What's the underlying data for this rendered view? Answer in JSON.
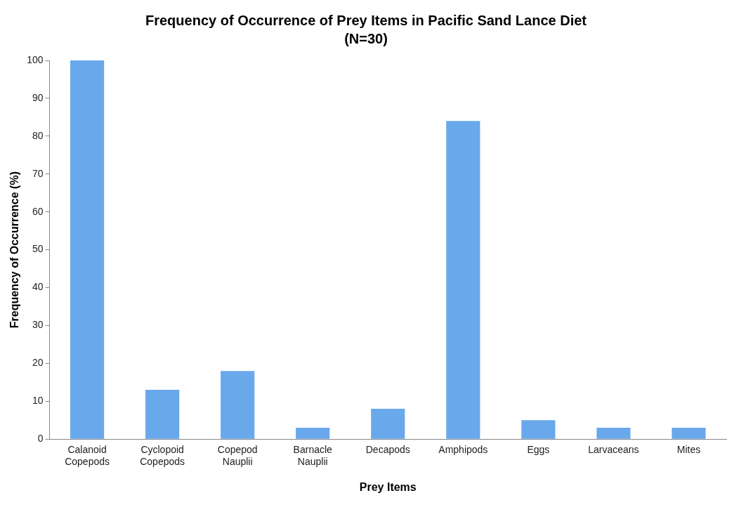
{
  "chart_data": {
    "type": "bar",
    "title": "Frequency of Occurrence of Prey Items in Pacific Sand Lance Diet",
    "subtitle": "(N=30)",
    "xlabel": "Prey Items",
    "ylabel": "Frequency of Occurrence (%)",
    "categories": [
      "Calanoid Copepods",
      "Cyclopoid Copepods",
      "Copepod Nauplii",
      "Barnacle Nauplii",
      "Decapods",
      "Amphipods",
      "Eggs",
      "Larvaceans",
      "Mites"
    ],
    "values": [
      100,
      13,
      18,
      3,
      8,
      84,
      5,
      3,
      3
    ],
    "color": "#6aa8ec",
    "ylim": [
      0,
      100
    ],
    "yticks": [
      0,
      10,
      20,
      30,
      40,
      50,
      60,
      70,
      80,
      90,
      100
    ],
    "grid": false,
    "legend": false
  }
}
